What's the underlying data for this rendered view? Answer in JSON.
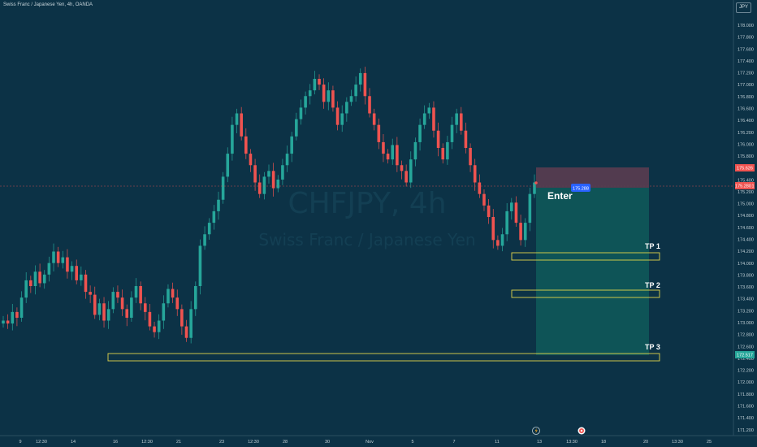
{
  "header": {
    "symbol_label": "Swiss Franc / Japanese Yen, 4h, OANDA",
    "currency": "JPY"
  },
  "watermark": {
    "title": "CHFJPY, 4h",
    "subtitle": "Swiss Franc / Japanese Yen"
  },
  "price_axis": {
    "ticks": [
      "178.000",
      "177.800",
      "177.600",
      "177.400",
      "177.200",
      "177.000",
      "176.800",
      "176.600",
      "176.400",
      "176.200",
      "176.000",
      "175.800",
      "175.600",
      "175.400",
      "175.200",
      "175.000",
      "174.800",
      "174.600",
      "174.400",
      "174.200",
      "174.000",
      "173.800",
      "173.600",
      "173.400",
      "173.200",
      "173.000",
      "172.800",
      "172.600",
      "172.400",
      "172.200",
      "172.000",
      "171.800",
      "171.600",
      "171.400",
      "171.200"
    ],
    "badge_top": "175.626",
    "badge_current": "175.280",
    "badge_current_extra": "1",
    "badge_tp3": "172.517"
  },
  "time_axis": {
    "ticks": [
      "9",
      "12:30",
      "14",
      "16",
      "12:30",
      "21",
      "23",
      "12:30",
      "28",
      "30",
      "Nov",
      "5",
      "7",
      "11",
      "13",
      "13:30",
      "18",
      "20",
      "13:30",
      "25"
    ]
  },
  "annotations": {
    "enter_label": "Enter",
    "entry_price": "175.288",
    "tp1": "TP 1",
    "tp2": "TP 2",
    "tp3": "TP 3"
  },
  "bottom_icons": [
    "lightning-icon",
    "target-icon"
  ],
  "colors": {
    "background": "#0c3246",
    "up": "#26a69a",
    "down": "#ef5350",
    "stop_zone": "#5a3c50",
    "profit_zone": "#0f5a5a",
    "tp_box": "#e0d44a"
  },
  "chart_data": {
    "type": "candlestick",
    "ylim": [
      171.1,
      178.3
    ],
    "price_points": [
      172.9,
      172.85,
      173.05,
      172.95,
      173.3,
      173.6,
      173.5,
      173.75,
      173.55,
      173.7,
      173.9,
      174.1,
      173.9,
      174.0,
      173.75,
      173.85,
      173.6,
      173.7,
      173.4,
      173.35,
      173.0,
      173.2,
      172.9,
      173.1,
      173.4,
      173.3,
      173.1,
      172.95,
      173.3,
      173.5,
      173.2,
      173.05,
      172.8,
      172.7,
      172.9,
      173.2,
      173.45,
      173.3,
      173.1,
      172.8,
      172.6,
      173.1,
      173.5,
      174.2,
      174.4,
      174.6,
      174.8,
      175.0,
      175.4,
      175.8,
      176.3,
      176.5,
      176.1,
      175.8,
      175.6,
      175.3,
      175.1,
      175.4,
      175.5,
      175.2,
      175.35,
      175.6,
      175.8,
      176.1,
      176.4,
      176.6,
      176.8,
      176.9,
      177.1,
      177.0,
      176.7,
      176.9,
      176.6,
      176.3,
      176.5,
      176.7,
      176.8,
      177.0,
      177.2,
      176.8,
      176.5,
      176.3,
      176.0,
      175.8,
      175.7,
      175.95,
      175.6,
      175.5,
      175.3,
      175.7,
      176.0,
      176.3,
      176.5,
      176.6,
      176.2,
      175.9,
      175.7,
      176.0,
      176.3,
      176.5,
      176.2,
      175.9,
      175.6,
      175.3,
      175.1,
      174.9,
      174.7,
      174.3,
      174.2,
      174.4,
      174.8,
      174.95,
      174.6,
      174.3,
      174.6,
      175.1,
      175.3
    ]
  }
}
